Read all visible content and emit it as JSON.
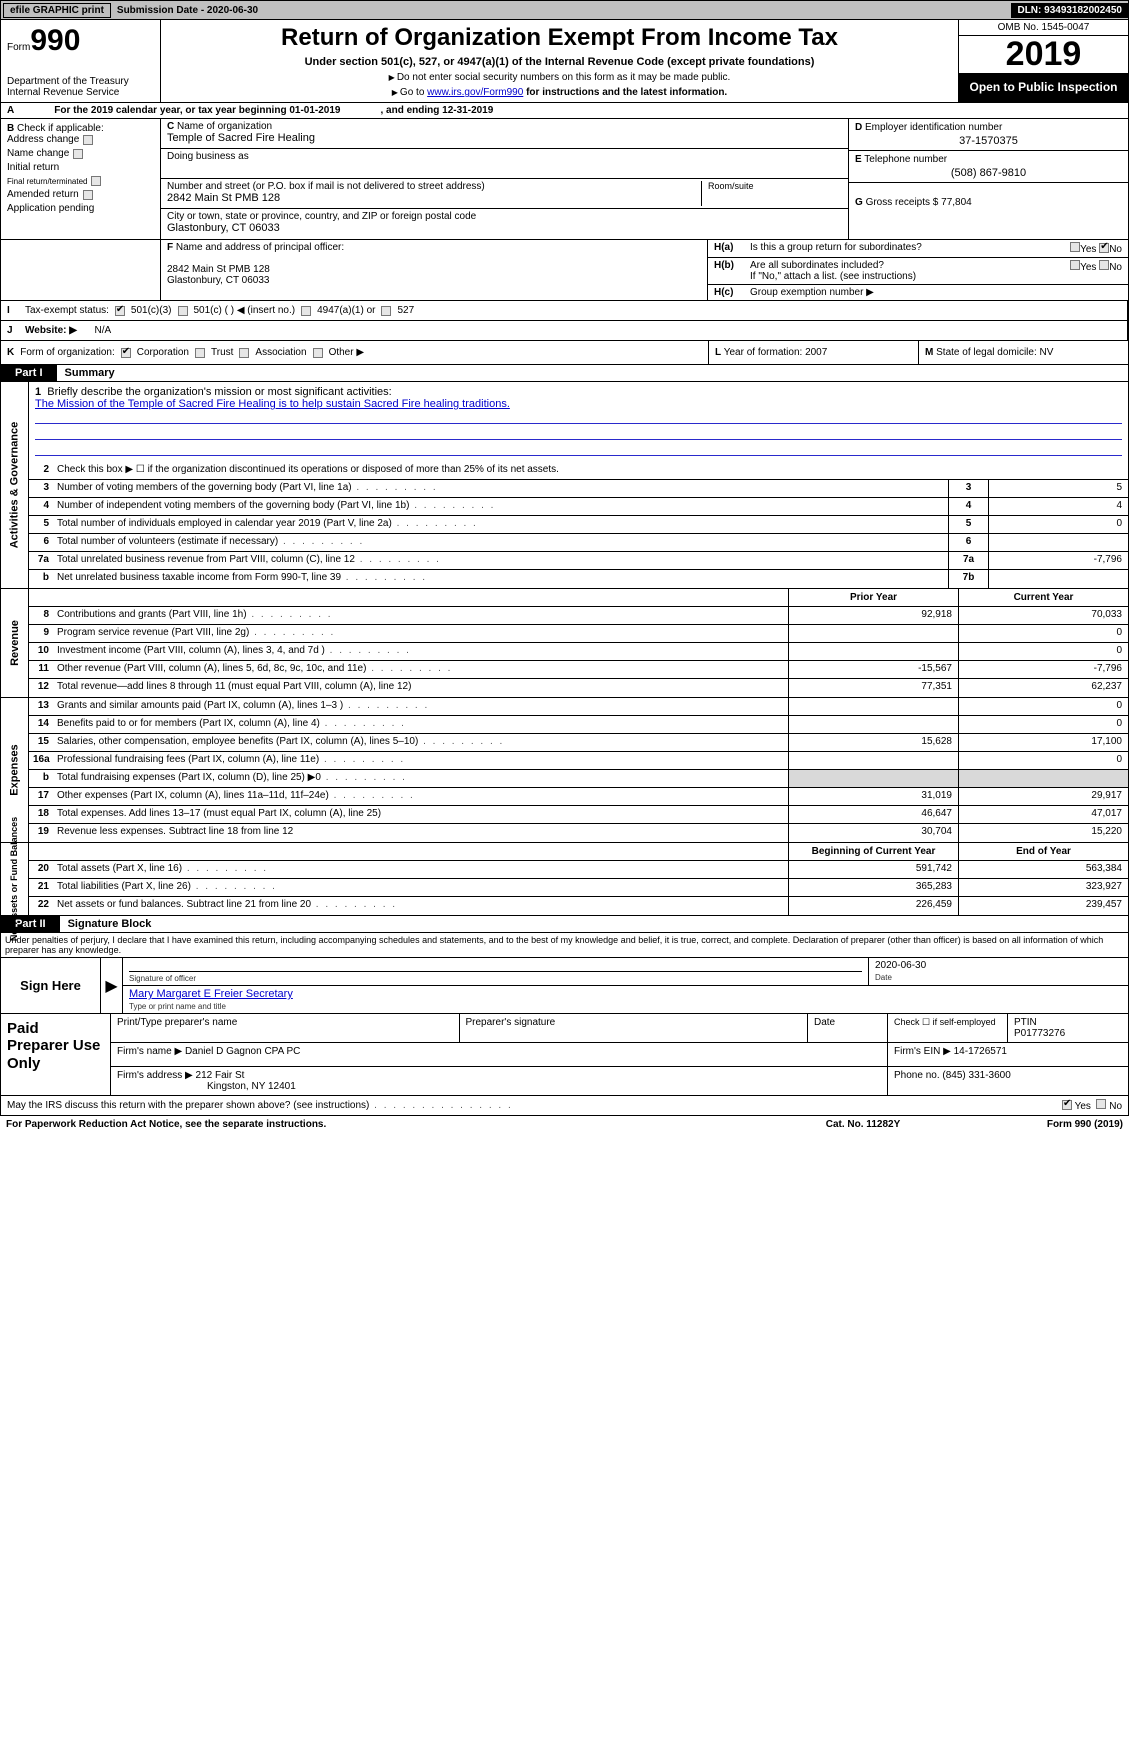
{
  "topbar": {
    "efile": "efile GRAPHIC print",
    "sub_label": "Submission Date - ",
    "sub_date": "2020-06-30",
    "dln": "DLN: 93493182002450"
  },
  "header": {
    "form_prefix": "Form",
    "form_number": "990",
    "dept": "Department of the Treasury\nInternal Revenue Service",
    "title": "Return of Organization Exempt From Income Tax",
    "sub": "Under section 501(c), 527, or 4947(a)(1) of the Internal Revenue Code (except private foundations)",
    "note1": "Do not enter social security numbers on this form as it may be made public.",
    "note2_pre": "Go to ",
    "note2_link": "www.irs.gov/Form990",
    "note2_post": " for instructions and the latest information.",
    "omb": "OMB No. 1545-0047",
    "year": "2019",
    "open": "Open to Public Inspection"
  },
  "A": {
    "text_pre": "For the 2019 calendar year, or tax year beginning ",
    "begin": "01-01-2019",
    "mid": ", and ending ",
    "end": "12-31-2019"
  },
  "B": {
    "label": "Check if applicable:",
    "opts": [
      "Address change",
      "Name change",
      "Initial return",
      "Final return/terminated",
      "Amended return",
      "Application pending"
    ]
  },
  "C": {
    "name_label": "Name of organization",
    "name": "Temple of Sacred Fire Healing",
    "dba_label": "Doing business as",
    "dba": "",
    "street_label": "Number and street (or P.O. box if mail is not delivered to street address)",
    "street": "2842 Main St PMB 128",
    "room_label": "Room/suite",
    "city_label": "City or town, state or province, country, and ZIP or foreign postal code",
    "city": "Glastonbury, CT  06033"
  },
  "D": {
    "label": "Employer identification number",
    "val": "37-1570375"
  },
  "E": {
    "label": "Telephone number",
    "val": "(508) 867-9810"
  },
  "G": {
    "label": "Gross receipts $ ",
    "val": "77,804"
  },
  "F": {
    "label": "Name and address of principal officer:",
    "line1": "2842 Main St PMB 128",
    "line2": "Glastonbury, CT  06033"
  },
  "H": {
    "a_lab": "H(a)",
    "a_txt": "Is this a group return for subordinates?",
    "a_no": true,
    "b_lab": "H(b)",
    "b_txt": "Are all subordinates included?",
    "b_note": "If \"No,\" attach a list. (see instructions)",
    "c_lab": "H(c)",
    "c_txt": "Group exemption number ▶"
  },
  "I": {
    "label": "Tax-exempt status:",
    "opts": [
      "501(c)(3)",
      "501(c) (   ) ◀ (insert no.)",
      "4947(a)(1) or",
      "527"
    ]
  },
  "J": {
    "label": "Website: ▶",
    "val": "N/A"
  },
  "K": {
    "label": "Form of organization:",
    "opts": [
      "Corporation",
      "Trust",
      "Association",
      "Other ▶"
    ]
  },
  "L": {
    "label": "Year of formation: ",
    "val": "2007"
  },
  "M": {
    "label": "State of legal domicile: ",
    "val": "NV"
  },
  "part1": {
    "bar": "Part I",
    "title": "Summary"
  },
  "summary": {
    "s1_label": "Activities & Governance",
    "l1": "Briefly describe the organization's mission or most significant activities:",
    "mission": "The Mission of the Temple of Sacred Fire Healing is to help sustain Sacred Fire healing traditions.",
    "l2": "Check this box ▶ ☐ if the organization discontinued its operations or disposed of more than 25% of its net assets.",
    "rows_ag": [
      {
        "n": "3",
        "t": "Number of voting members of the governing body (Part VI, line 1a)",
        "box": "3",
        "v": "5"
      },
      {
        "n": "4",
        "t": "Number of independent voting members of the governing body (Part VI, line 1b)",
        "box": "4",
        "v": "4"
      },
      {
        "n": "5",
        "t": "Total number of individuals employed in calendar year 2019 (Part V, line 2a)",
        "box": "5",
        "v": "0"
      },
      {
        "n": "6",
        "t": "Total number of volunteers (estimate if necessary)",
        "box": "6",
        "v": ""
      },
      {
        "n": "7a",
        "t": "Total unrelated business revenue from Part VIII, column (C), line 12",
        "box": "7a",
        "v": "-7,796"
      },
      {
        "n": "b",
        "t": "Net unrelated business taxable income from Form 990-T, line 39",
        "box": "7b",
        "v": ""
      }
    ],
    "s2_label": "Revenue",
    "head_prior": "Prior Year",
    "head_curr": "Current Year",
    "rows_rev": [
      {
        "n": "8",
        "t": "Contributions and grants (Part VIII, line 1h)",
        "p": "92,918",
        "c": "70,033"
      },
      {
        "n": "9",
        "t": "Program service revenue (Part VIII, line 2g)",
        "p": "",
        "c": "0"
      },
      {
        "n": "10",
        "t": "Investment income (Part VIII, column (A), lines 3, 4, and 7d )",
        "p": "",
        "c": "0"
      },
      {
        "n": "11",
        "t": "Other revenue (Part VIII, column (A), lines 5, 6d, 8c, 9c, 10c, and 11e)",
        "p": "-15,567",
        "c": "-7,796"
      },
      {
        "n": "12",
        "t": "Total revenue—add lines 8 through 11 (must equal Part VIII, column (A), line 12)",
        "p": "77,351",
        "c": "62,237"
      }
    ],
    "s3_label": "Expenses",
    "rows_exp": [
      {
        "n": "13",
        "t": "Grants and similar amounts paid (Part IX, column (A), lines 1–3 )",
        "p": "",
        "c": "0"
      },
      {
        "n": "14",
        "t": "Benefits paid to or for members (Part IX, column (A), line 4)",
        "p": "",
        "c": "0"
      },
      {
        "n": "15",
        "t": "Salaries, other compensation, employee benefits (Part IX, column (A), lines 5–10)",
        "p": "15,628",
        "c": "17,100"
      },
      {
        "n": "16a",
        "t": "Professional fundraising fees (Part IX, column (A), line 11e)",
        "p": "",
        "c": "0"
      },
      {
        "n": "b",
        "t": "Total fundraising expenses (Part IX, column (D), line 25) ▶0",
        "p": "shade",
        "c": "shade"
      },
      {
        "n": "17",
        "t": "Other expenses (Part IX, column (A), lines 11a–11d, 11f–24e)",
        "p": "31,019",
        "c": "29,917"
      },
      {
        "n": "18",
        "t": "Total expenses. Add lines 13–17 (must equal Part IX, column (A), line 25)",
        "p": "46,647",
        "c": "47,017"
      },
      {
        "n": "19",
        "t": "Revenue less expenses. Subtract line 18 from line 12",
        "p": "30,704",
        "c": "15,220"
      }
    ],
    "s4_label": "Net Assets or Fund Balances",
    "head_boy": "Beginning of Current Year",
    "head_eoy": "End of Year",
    "rows_na": [
      {
        "n": "20",
        "t": "Total assets (Part X, line 16)",
        "p": "591,742",
        "c": "563,384"
      },
      {
        "n": "21",
        "t": "Total liabilities (Part X, line 26)",
        "p": "365,283",
        "c": "323,927"
      },
      {
        "n": "22",
        "t": "Net assets or fund balances. Subtract line 21 from line 20",
        "p": "226,459",
        "c": "239,457"
      }
    ]
  },
  "part2": {
    "bar": "Part II",
    "title": "Signature Block"
  },
  "perjury": "Under penalties of perjury, I declare that I have examined this return, including accompanying schedules and statements, and to the best of my knowledge and belief, it is true, correct, and complete. Declaration of preparer (other than officer) is based on all information of which preparer has any knowledge.",
  "sign": {
    "here": "Sign Here",
    "sig_officer": "Signature of officer",
    "date": "Date",
    "date_val": "2020-06-30",
    "name": "Mary Margaret E Freier Secretary",
    "name_label": "Type or print name and title"
  },
  "prep": {
    "label": "Paid Preparer Use Only",
    "h1": "Print/Type preparer's name",
    "h2": "Preparer's signature",
    "h3": "Date",
    "h4_pre": "Check ☐ if self-employed",
    "h5": "PTIN",
    "ptin": "P01773276",
    "firm_name_l": "Firm's name  ▶",
    "firm_name": "Daniel D Gagnon CPA PC",
    "firm_ein_l": "Firm's EIN ▶",
    "firm_ein": "14-1726571",
    "firm_addr_l": "Firm's address ▶",
    "firm_addr1": "212 Fair St",
    "firm_addr2": "Kingston, NY  12401",
    "phone_l": "Phone no.",
    "phone": "(845) 331-3600"
  },
  "discuss": {
    "q": "May the IRS discuss this return with the preparer shown above? (see instructions)",
    "yes": true
  },
  "footer": {
    "left": "For Paperwork Reduction Act Notice, see the separate instructions.",
    "mid": "Cat. No. 11282Y",
    "right": "Form 990 (2019)"
  }
}
